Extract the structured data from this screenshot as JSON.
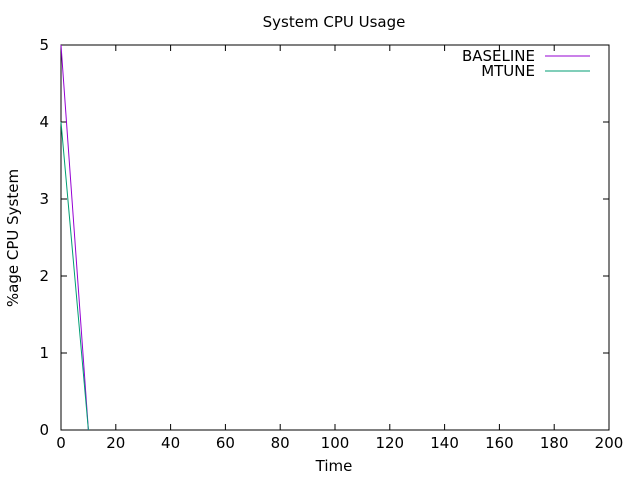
{
  "chart_data": {
    "type": "line",
    "title": "System CPU Usage",
    "xlabel": "Time",
    "ylabel": "%age CPU System",
    "xlim": [
      0,
      200
    ],
    "ylim": [
      0,
      5
    ],
    "xticks": [
      0,
      20,
      40,
      60,
      80,
      100,
      120,
      140,
      160,
      180,
      200
    ],
    "yticks": [
      0,
      1,
      2,
      3,
      4,
      5
    ],
    "grid": false,
    "legend_position": "top-right",
    "series": [
      {
        "name": "BASELINE",
        "color": "#9400d3",
        "x": [
          0,
          1,
          2,
          3,
          4,
          5,
          6,
          7,
          8,
          9,
          10
        ],
        "y": [
          5,
          4.5,
          4,
          3.5,
          3,
          2.5,
          2,
          1.5,
          1,
          0.5,
          0
        ]
      },
      {
        "name": "MTUNE",
        "color": "#009e73",
        "x": [
          0,
          1,
          2,
          3,
          4,
          5,
          6,
          7,
          8,
          9,
          10
        ],
        "y": [
          4,
          3.6,
          3.2,
          2.8,
          2.4,
          2,
          1.6,
          1.2,
          0.8,
          0.4,
          0
        ]
      }
    ]
  }
}
